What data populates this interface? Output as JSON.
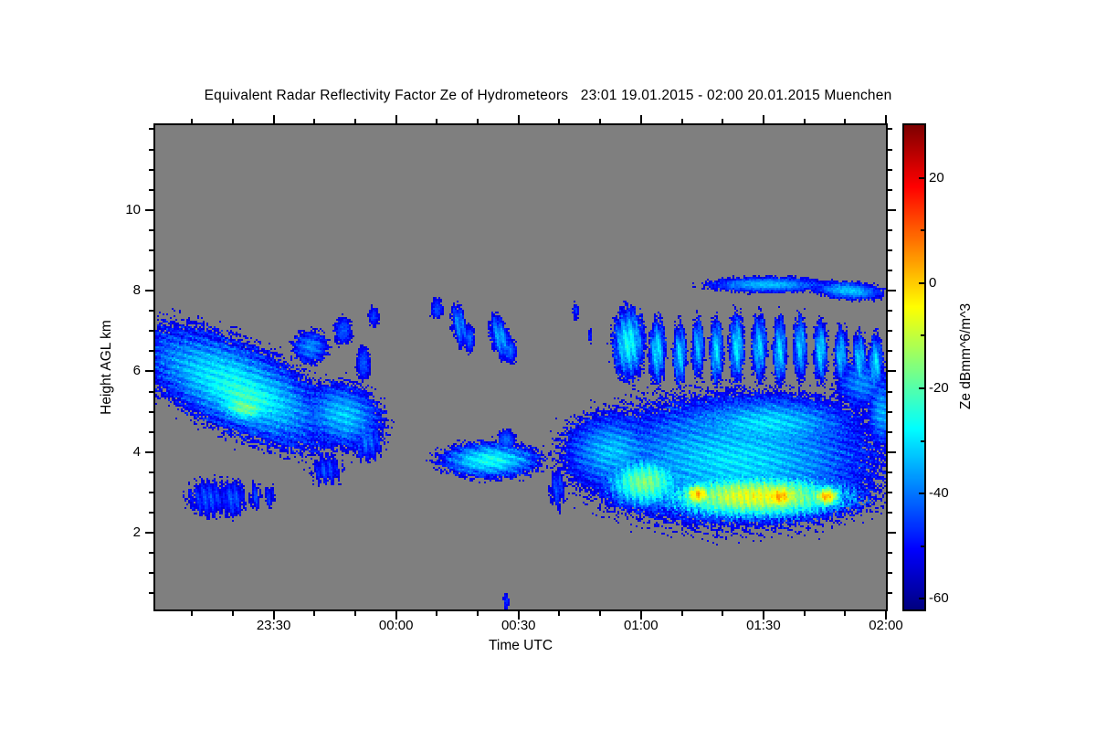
{
  "chart_data": {
    "type": "heatmap",
    "title": "Equivalent Radar Reflectivity Factor Ze of Hydrometeors   23:01 19.01.2015 - 02:00 20.01.2015 Muenchen",
    "xlabel": "Time UTC",
    "ylabel": "Height AGL km",
    "station": "Muenchen",
    "time_start": "23:01 19.01.2015",
    "time_end": "02:00 20.01.2015",
    "x_axis": {
      "duration_minutes": 179,
      "major_ticks": [
        {
          "minute": 29,
          "label": "23:30"
        },
        {
          "minute": 59,
          "label": "00:00"
        },
        {
          "minute": 89,
          "label": "00:30"
        },
        {
          "minute": 119,
          "label": "01:00"
        },
        {
          "minute": 149,
          "label": "01:30"
        },
        {
          "minute": 179,
          "label": "02:00"
        }
      ],
      "minor_tick_every_minutes": 10
    },
    "y_axis": {
      "min_km": 0.1,
      "max_km": 12.1,
      "major_ticks": [
        2,
        4,
        6,
        8,
        10
      ],
      "minor_tick_every_km": 0.5
    },
    "colorbar": {
      "label": "Ze dBmm^6/m^3",
      "min": -62,
      "max": 30,
      "major_tick_values": [
        20,
        0,
        -20,
        -40,
        -60
      ],
      "minor_tick_values": [
        10,
        -10,
        -30,
        -50
      ],
      "colormap": "jet"
    },
    "no_echo_color": "#7f7f7f",
    "echo_region_fields": {
      "t": "center time, minutes after 23:01",
      "h": "center height, km AGL",
      "rt": "half-width, minutes",
      "rh": "half-depth, km",
      "pk": "peak reflectivity, dB mm^6/m^3",
      "sl": "center-height slope, km per minute",
      "tx": "texture: n=none, d=diagonal fall streaks, v=vertical streaks"
    },
    "echo_regions": [
      {
        "t": 20,
        "h": 5.6,
        "rt": 27,
        "rh": 1.3,
        "pk": -26,
        "sl": -0.04,
        "tx": "d"
      },
      {
        "t": 22,
        "h": 5.4,
        "rt": 17,
        "rh": 0.8,
        "pk": -22,
        "sl": -0.03,
        "tx": "d"
      },
      {
        "t": 22,
        "h": 5.1,
        "rt": 9,
        "rh": 0.45,
        "pk": -16,
        "sl": -0.015,
        "tx": "d"
      },
      {
        "t": 46,
        "h": 4.9,
        "rt": 11,
        "rh": 0.9,
        "pk": -32,
        "sl": -0.015,
        "tx": "d"
      },
      {
        "t": 38,
        "h": 6.6,
        "rt": 5,
        "rh": 0.45,
        "pk": -38,
        "sl": 0,
        "tx": "d"
      },
      {
        "t": 46,
        "h": 7.0,
        "rt": 2.5,
        "rh": 0.4,
        "pk": -42,
        "sl": 0,
        "tx": "n"
      },
      {
        "t": 51,
        "h": 6.2,
        "rt": 2,
        "rh": 0.5,
        "pk": -42,
        "sl": 0,
        "tx": "n"
      },
      {
        "t": 53.5,
        "h": 7.35,
        "rt": 1.6,
        "rh": 0.28,
        "pk": -45,
        "sl": 0,
        "tx": "n"
      },
      {
        "t": 42,
        "h": 3.55,
        "rt": 4,
        "rh": 0.4,
        "pk": -45,
        "sl": 0,
        "tx": "v"
      },
      {
        "t": 52,
        "h": 4.25,
        "rt": 4,
        "rh": 0.5,
        "pk": -41,
        "sl": 0,
        "tx": "v"
      },
      {
        "t": 13,
        "h": 2.85,
        "rt": 5.5,
        "rh": 0.5,
        "pk": -44,
        "sl": 0,
        "tx": "v"
      },
      {
        "t": 19,
        "h": 2.85,
        "rt": 3.5,
        "rh": 0.5,
        "pk": -43,
        "sl": 0,
        "tx": "v"
      },
      {
        "t": 24.5,
        "h": 2.9,
        "rt": 1.6,
        "rh": 0.35,
        "pk": -46,
        "sl": 0,
        "tx": "v"
      },
      {
        "t": 28,
        "h": 2.9,
        "rt": 1.2,
        "rh": 0.3,
        "pk": -47,
        "sl": 0,
        "tx": "v"
      },
      {
        "t": 69,
        "h": 7.55,
        "rt": 1.8,
        "rh": 0.3,
        "pk": -43,
        "sl": 0,
        "tx": "n"
      },
      {
        "t": 74.5,
        "h": 7.15,
        "rt": 2.2,
        "rh": 0.55,
        "pk": -37,
        "sl": -0.1,
        "tx": "v"
      },
      {
        "t": 77,
        "h": 6.8,
        "rt": 1.4,
        "rh": 0.4,
        "pk": -41,
        "sl": 0,
        "tx": "n"
      },
      {
        "t": 84.5,
        "h": 6.85,
        "rt": 3,
        "rh": 0.55,
        "pk": -35,
        "sl": -0.1,
        "tx": "v"
      },
      {
        "t": 87,
        "h": 6.5,
        "rt": 1.8,
        "rh": 0.35,
        "pk": -40,
        "sl": 0,
        "tx": "n"
      },
      {
        "t": 103,
        "h": 7.5,
        "rt": 0.8,
        "rh": 0.25,
        "pk": -46,
        "sl": 0,
        "tx": "n"
      },
      {
        "t": 106.5,
        "h": 6.9,
        "rt": 0.6,
        "rh": 0.2,
        "pk": -47,
        "sl": 0,
        "tx": "n"
      },
      {
        "t": 86,
        "h": 0.3,
        "rt": 0.8,
        "rh": 0.25,
        "pk": -46,
        "sl": 0,
        "tx": "n"
      },
      {
        "t": 116,
        "h": 6.7,
        "rt": 4.5,
        "rh": 1.0,
        "pk": -27,
        "sl": 0,
        "tx": "v"
      },
      {
        "t": 123,
        "h": 6.5,
        "rt": 2.3,
        "rh": 0.9,
        "pk": -30,
        "sl": 0,
        "tx": "v"
      },
      {
        "t": 128.5,
        "h": 6.4,
        "rt": 1.9,
        "rh": 0.85,
        "pk": -31,
        "sl": 0,
        "tx": "v"
      },
      {
        "t": 133,
        "h": 6.6,
        "rt": 1.7,
        "rh": 0.8,
        "pk": -33,
        "sl": 0,
        "tx": "v"
      },
      {
        "t": 137.5,
        "h": 6.5,
        "rt": 1.9,
        "rh": 0.9,
        "pk": -30,
        "sl": 0,
        "tx": "v"
      },
      {
        "t": 142.5,
        "h": 6.6,
        "rt": 2.1,
        "rh": 0.95,
        "pk": -29,
        "sl": 0,
        "tx": "v"
      },
      {
        "t": 148,
        "h": 6.6,
        "rt": 2.1,
        "rh": 0.9,
        "pk": -31,
        "sl": 0,
        "tx": "v"
      },
      {
        "t": 153,
        "h": 6.5,
        "rt": 1.9,
        "rh": 0.95,
        "pk": -30,
        "sl": 0,
        "tx": "v"
      },
      {
        "t": 158,
        "h": 6.6,
        "rt": 1.9,
        "rh": 0.9,
        "pk": -32,
        "sl": 0,
        "tx": "v"
      },
      {
        "t": 163,
        "h": 6.5,
        "rt": 1.9,
        "rh": 0.85,
        "pk": -30,
        "sl": 0,
        "tx": "v"
      },
      {
        "t": 168,
        "h": 6.4,
        "rt": 1.9,
        "rh": 0.8,
        "pk": -33,
        "sl": 0,
        "tx": "v"
      },
      {
        "t": 172.5,
        "h": 6.3,
        "rt": 1.9,
        "rh": 0.75,
        "pk": -31,
        "sl": 0,
        "tx": "v"
      },
      {
        "t": 176.5,
        "h": 6.2,
        "rt": 2,
        "rh": 0.8,
        "pk": -30,
        "sl": 0,
        "tx": "v"
      },
      {
        "t": 150,
        "h": 8.15,
        "rt": 17,
        "rh": 0.22,
        "pk": -33,
        "sl": 0,
        "tx": "n"
      },
      {
        "t": 170,
        "h": 8.0,
        "rt": 10,
        "rh": 0.25,
        "pk": -32,
        "sl": -0.008,
        "tx": "n"
      },
      {
        "t": 82,
        "h": 3.8,
        "rt": 14,
        "rh": 0.5,
        "pk": -26,
        "sl": 0,
        "tx": "d"
      },
      {
        "t": 86,
        "h": 4.3,
        "rt": 2.5,
        "rh": 0.3,
        "pk": -40,
        "sl": 0,
        "tx": "n"
      },
      {
        "t": 98.5,
        "h": 3.1,
        "rt": 2,
        "rh": 0.55,
        "pk": -44,
        "sl": 0,
        "tx": "v"
      },
      {
        "t": 142,
        "h": 3.8,
        "rt": 40,
        "rh": 1.8,
        "pk": -30,
        "sl": 0,
        "tx": "d"
      },
      {
        "t": 112,
        "h": 4.0,
        "rt": 14,
        "rh": 1.1,
        "pk": -33,
        "sl": 0,
        "tx": "d"
      },
      {
        "t": 120,
        "h": 3.25,
        "rt": 12,
        "rh": 0.8,
        "pk": -16,
        "sl": 0,
        "tx": "v"
      },
      {
        "t": 147,
        "h": 2.9,
        "rt": 30,
        "rh": 0.7,
        "pk": -6,
        "sl": 0,
        "tx": "v"
      },
      {
        "t": 133,
        "h": 2.95,
        "rt": 5,
        "rh": 0.4,
        "pk": 2,
        "sl": 0,
        "tx": "v"
      },
      {
        "t": 153,
        "h": 2.9,
        "rt": 6.5,
        "rh": 0.45,
        "pk": 4,
        "sl": 0,
        "tx": "v"
      },
      {
        "t": 164.5,
        "h": 2.9,
        "rt": 4.5,
        "rh": 0.35,
        "pk": 3,
        "sl": 0,
        "tx": "v"
      },
      {
        "t": 150,
        "h": 4.7,
        "rt": 25,
        "rh": 0.8,
        "pk": -30,
        "sl": 0,
        "tx": "d"
      },
      {
        "t": 173,
        "h": 5.7,
        "rt": 7,
        "rh": 0.7,
        "pk": -38,
        "sl": 0,
        "tx": "d"
      },
      {
        "t": 178,
        "h": 5.0,
        "rt": 4,
        "rh": 1.0,
        "pk": -35,
        "sl": 0,
        "tx": "d"
      }
    ]
  }
}
